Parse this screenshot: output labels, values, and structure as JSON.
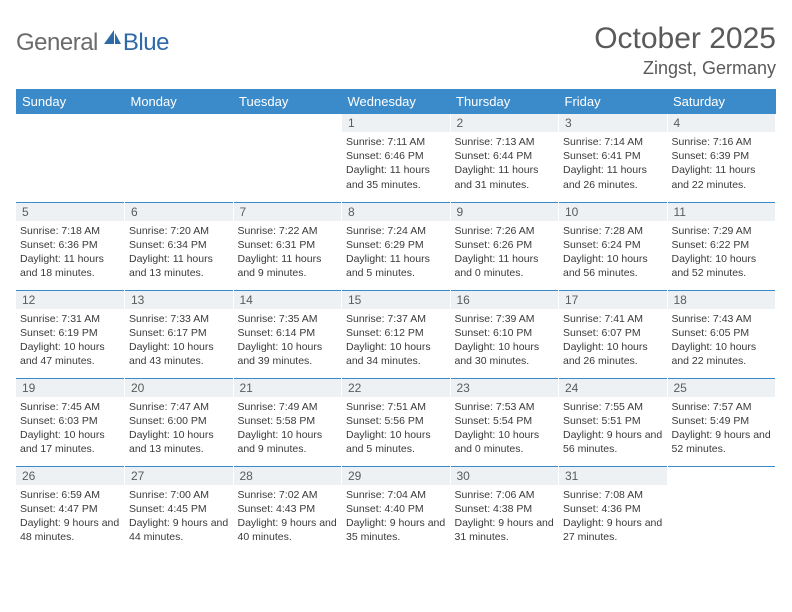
{
  "logo": {
    "general": "General",
    "blue": "Blue",
    "sail_color": "#2f6aa8"
  },
  "title": "October 2025",
  "location": "Zingst, Germany",
  "header_bg": "#3b8bcb",
  "daynum_bg": "#eef1f3",
  "line_color": "#3b8bcb",
  "weekdays": [
    "Sunday",
    "Monday",
    "Tuesday",
    "Wednesday",
    "Thursday",
    "Friday",
    "Saturday"
  ],
  "weeks": [
    [
      {
        "n": "",
        "t": ""
      },
      {
        "n": "",
        "t": ""
      },
      {
        "n": "",
        "t": ""
      },
      {
        "n": "1",
        "t": "Sunrise: 7:11 AM\nSunset: 6:46 PM\nDaylight: 11 hours and 35 minutes."
      },
      {
        "n": "2",
        "t": "Sunrise: 7:13 AM\nSunset: 6:44 PM\nDaylight: 11 hours and 31 minutes."
      },
      {
        "n": "3",
        "t": "Sunrise: 7:14 AM\nSunset: 6:41 PM\nDaylight: 11 hours and 26 minutes."
      },
      {
        "n": "4",
        "t": "Sunrise: 7:16 AM\nSunset: 6:39 PM\nDaylight: 11 hours and 22 minutes."
      }
    ],
    [
      {
        "n": "5",
        "t": "Sunrise: 7:18 AM\nSunset: 6:36 PM\nDaylight: 11 hours and 18 minutes."
      },
      {
        "n": "6",
        "t": "Sunrise: 7:20 AM\nSunset: 6:34 PM\nDaylight: 11 hours and 13 minutes."
      },
      {
        "n": "7",
        "t": "Sunrise: 7:22 AM\nSunset: 6:31 PM\nDaylight: 11 hours and 9 minutes."
      },
      {
        "n": "8",
        "t": "Sunrise: 7:24 AM\nSunset: 6:29 PM\nDaylight: 11 hours and 5 minutes."
      },
      {
        "n": "9",
        "t": "Sunrise: 7:26 AM\nSunset: 6:26 PM\nDaylight: 11 hours and 0 minutes."
      },
      {
        "n": "10",
        "t": "Sunrise: 7:28 AM\nSunset: 6:24 PM\nDaylight: 10 hours and 56 minutes."
      },
      {
        "n": "11",
        "t": "Sunrise: 7:29 AM\nSunset: 6:22 PM\nDaylight: 10 hours and 52 minutes."
      }
    ],
    [
      {
        "n": "12",
        "t": "Sunrise: 7:31 AM\nSunset: 6:19 PM\nDaylight: 10 hours and 47 minutes."
      },
      {
        "n": "13",
        "t": "Sunrise: 7:33 AM\nSunset: 6:17 PM\nDaylight: 10 hours and 43 minutes."
      },
      {
        "n": "14",
        "t": "Sunrise: 7:35 AM\nSunset: 6:14 PM\nDaylight: 10 hours and 39 minutes."
      },
      {
        "n": "15",
        "t": "Sunrise: 7:37 AM\nSunset: 6:12 PM\nDaylight: 10 hours and 34 minutes."
      },
      {
        "n": "16",
        "t": "Sunrise: 7:39 AM\nSunset: 6:10 PM\nDaylight: 10 hours and 30 minutes."
      },
      {
        "n": "17",
        "t": "Sunrise: 7:41 AM\nSunset: 6:07 PM\nDaylight: 10 hours and 26 minutes."
      },
      {
        "n": "18",
        "t": "Sunrise: 7:43 AM\nSunset: 6:05 PM\nDaylight: 10 hours and 22 minutes."
      }
    ],
    [
      {
        "n": "19",
        "t": "Sunrise: 7:45 AM\nSunset: 6:03 PM\nDaylight: 10 hours and 17 minutes."
      },
      {
        "n": "20",
        "t": "Sunrise: 7:47 AM\nSunset: 6:00 PM\nDaylight: 10 hours and 13 minutes."
      },
      {
        "n": "21",
        "t": "Sunrise: 7:49 AM\nSunset: 5:58 PM\nDaylight: 10 hours and 9 minutes."
      },
      {
        "n": "22",
        "t": "Sunrise: 7:51 AM\nSunset: 5:56 PM\nDaylight: 10 hours and 5 minutes."
      },
      {
        "n": "23",
        "t": "Sunrise: 7:53 AM\nSunset: 5:54 PM\nDaylight: 10 hours and 0 minutes."
      },
      {
        "n": "24",
        "t": "Sunrise: 7:55 AM\nSunset: 5:51 PM\nDaylight: 9 hours and 56 minutes."
      },
      {
        "n": "25",
        "t": "Sunrise: 7:57 AM\nSunset: 5:49 PM\nDaylight: 9 hours and 52 minutes."
      }
    ],
    [
      {
        "n": "26",
        "t": "Sunrise: 6:59 AM\nSunset: 4:47 PM\nDaylight: 9 hours and 48 minutes."
      },
      {
        "n": "27",
        "t": "Sunrise: 7:00 AM\nSunset: 4:45 PM\nDaylight: 9 hours and 44 minutes."
      },
      {
        "n": "28",
        "t": "Sunrise: 7:02 AM\nSunset: 4:43 PM\nDaylight: 9 hours and 40 minutes."
      },
      {
        "n": "29",
        "t": "Sunrise: 7:04 AM\nSunset: 4:40 PM\nDaylight: 9 hours and 35 minutes."
      },
      {
        "n": "30",
        "t": "Sunrise: 7:06 AM\nSunset: 4:38 PM\nDaylight: 9 hours and 31 minutes."
      },
      {
        "n": "31",
        "t": "Sunrise: 7:08 AM\nSunset: 4:36 PM\nDaylight: 9 hours and 27 minutes."
      },
      {
        "n": "",
        "t": ""
      }
    ]
  ]
}
